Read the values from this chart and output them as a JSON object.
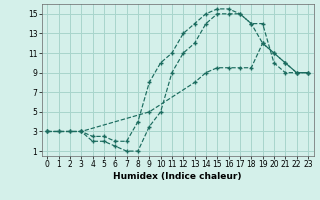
{
  "xlabel": "Humidex (Indice chaleur)",
  "xlim": [
    -0.5,
    23.5
  ],
  "ylim": [
    0.5,
    16
  ],
  "xticks": [
    0,
    1,
    2,
    3,
    4,
    5,
    6,
    7,
    8,
    9,
    10,
    11,
    12,
    13,
    14,
    15,
    16,
    17,
    18,
    19,
    20,
    21,
    22,
    23
  ],
  "yticks": [
    1,
    3,
    5,
    7,
    9,
    11,
    13,
    15
  ],
  "background_color": "#d4f0ea",
  "grid_color": "#a8d5cc",
  "line_color": "#1a6b5e",
  "curve1_x": [
    0,
    1,
    2,
    3,
    4,
    5,
    6,
    7,
    8,
    9,
    10,
    11,
    12,
    13,
    14,
    15,
    16,
    17,
    18,
    19,
    20,
    21,
    22,
    23
  ],
  "curve1_y": [
    3,
    3,
    3,
    3,
    2,
    2,
    1.5,
    1,
    1,
    3.5,
    5,
    9,
    11,
    12,
    14,
    15,
    15,
    15,
    14,
    12,
    11,
    10,
    9,
    9
  ],
  "curve2_x": [
    0,
    1,
    2,
    3,
    4,
    5,
    6,
    7,
    8,
    9,
    10,
    11,
    12,
    13,
    14,
    15,
    16,
    17,
    18,
    19,
    20,
    21,
    22,
    23
  ],
  "curve2_y": [
    3,
    3,
    3,
    3,
    2.5,
    2.5,
    2,
    2,
    4,
    8,
    10,
    11,
    13,
    14,
    15,
    15.5,
    15.5,
    15,
    14,
    14,
    10,
    9,
    9,
    9
  ],
  "curve3_x": [
    0,
    3,
    9,
    13,
    14,
    15,
    16,
    17,
    18,
    19,
    20,
    21,
    22,
    23
  ],
  "curve3_y": [
    3,
    3,
    5,
    8,
    9,
    9.5,
    9.5,
    9.5,
    9.5,
    12,
    11,
    10,
    9,
    9
  ]
}
